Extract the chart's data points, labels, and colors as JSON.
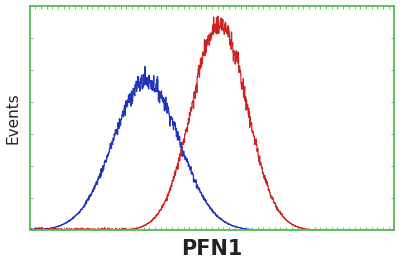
{
  "title": "",
  "xlabel": "PFN1",
  "ylabel": "Events",
  "xlabel_fontsize": 15,
  "ylabel_fontsize": 11,
  "blue_mean": 0.32,
  "blue_std": 0.09,
  "red_mean": 0.52,
  "red_std": 0.075,
  "blue_color": "#2233bb",
  "red_color": "#cc2222",
  "xlim": [
    0,
    1
  ],
  "ylim": [
    0,
    1.08
  ],
  "background_color": "#ffffff",
  "border_color": "#55bb55",
  "blue_peak": 0.72,
  "red_peak": 1.0,
  "noise_amplitude": 0.022,
  "noise_seed_blue": 7,
  "noise_seed_red": 13
}
